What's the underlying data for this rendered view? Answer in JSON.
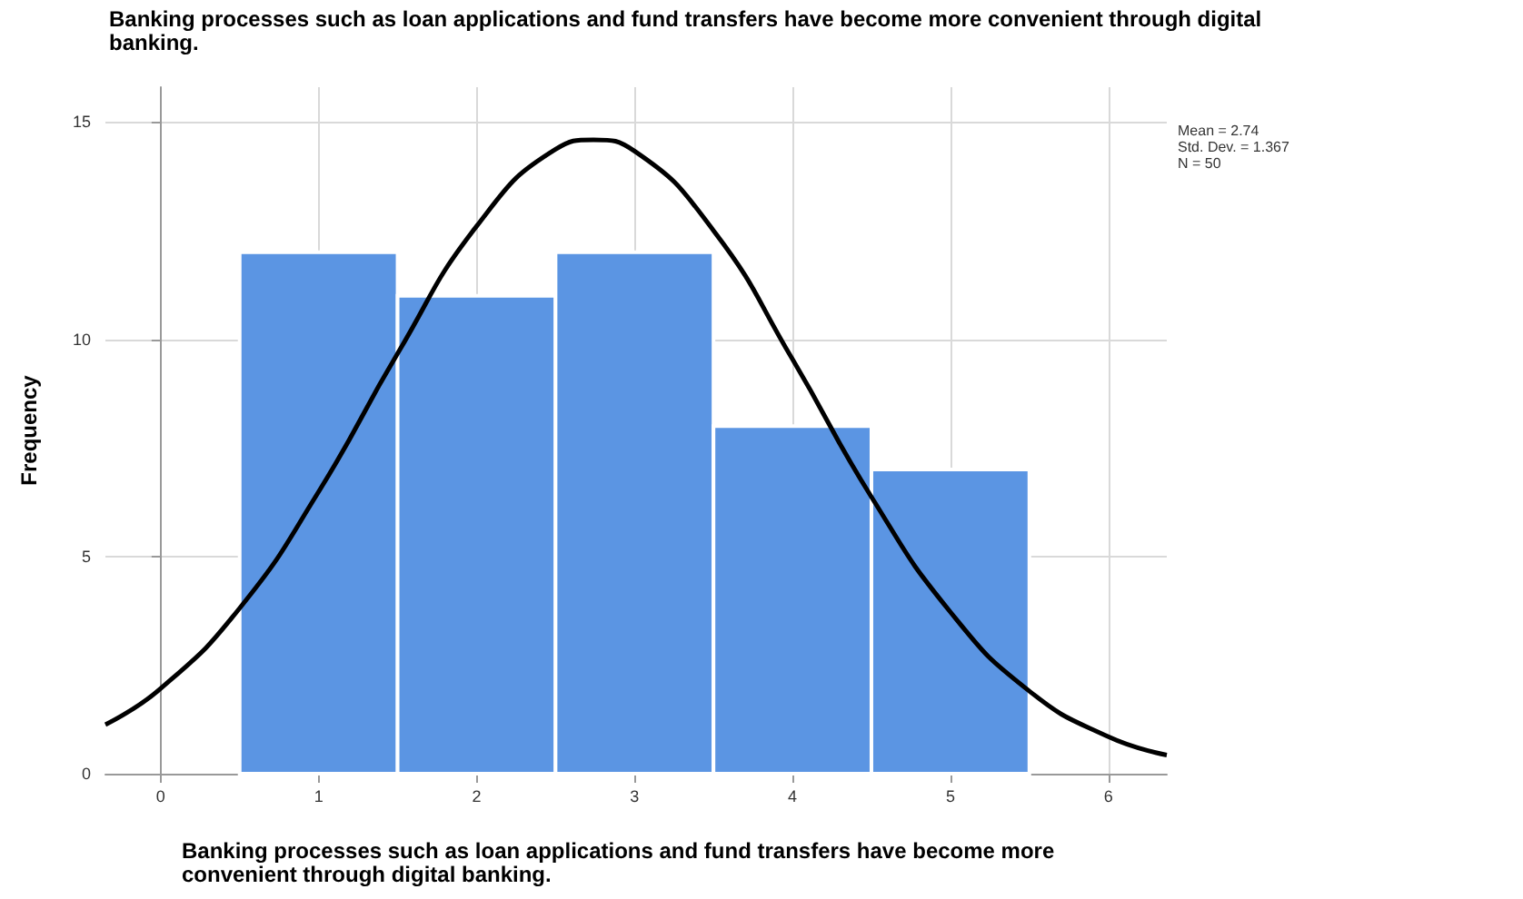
{
  "chart_data": {
    "type": "histogram",
    "title": "Banking processes such as loan applications and fund transfers have become more convenient through digital banking.",
    "xlabel": "Banking processes such as loan applications and fund transfers have become more convenient through digital banking.",
    "ylabel": "Frequency",
    "bins": [
      0.5,
      1.5,
      2.5,
      3.5,
      4.5,
      5.5
    ],
    "series": [
      {
        "color": "#5b95e3",
        "values": [
          12,
          11,
          12,
          8,
          7
        ]
      },
      {
        "type": "line",
        "color": "#000000",
        "x": [
          -0.35,
          0,
          0.5,
          1,
          1.5,
          2,
          2.5,
          2.74,
          3,
          3.5,
          4,
          4.5,
          5,
          5.5,
          6,
          6.37
        ],
        "values": [
          1.13,
          1.96,
          3.81,
          6.49,
          9.67,
          12.6,
          14.37,
          14.59,
          14.33,
          12.5,
          9.54,
          6.37,
          3.72,
          1.9,
          0.85,
          0.43
        ]
      }
    ],
    "xlim": [
      -0.35,
      6.37
    ],
    "xticks": [
      0,
      1,
      2,
      3,
      4,
      5,
      6
    ],
    "ylim": [
      0,
      15.8
    ],
    "yticks": [
      0,
      5,
      10,
      15
    ],
    "grid": true,
    "marker": "none",
    "line_style": "solid",
    "annotations": [
      "Mean = 2.74",
      "Std. Dev. = 1.367",
      "N = 50"
    ]
  }
}
